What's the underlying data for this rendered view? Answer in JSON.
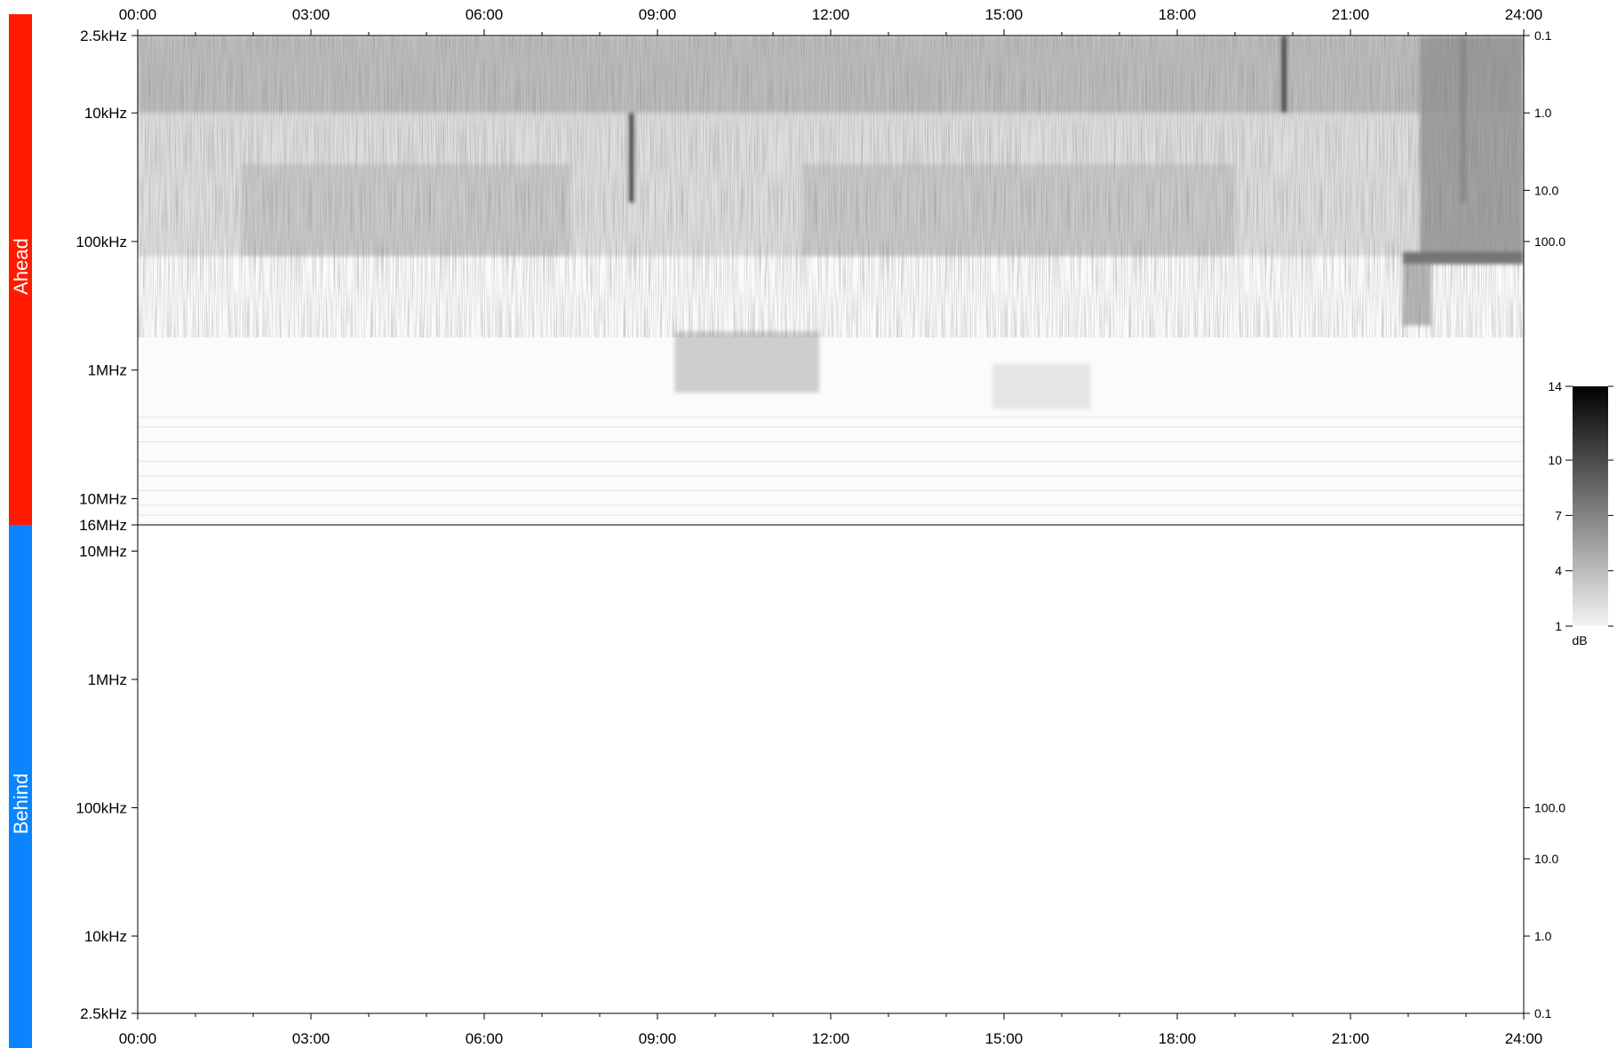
{
  "chart_data": {
    "type": "heatmap",
    "title": "",
    "time_axis": {
      "ticks": [
        "00:00",
        "03:00",
        "06:00",
        "09:00",
        "12:00",
        "15:00",
        "18:00",
        "21:00",
        "24:00"
      ],
      "range_hours": [
        0,
        24
      ],
      "minor_tick_hours": 1
    },
    "panels": [
      {
        "name": "Ahead",
        "color": "#ff1a00",
        "frequency_scale": "log",
        "frequency_range_hz": [
          2500,
          16000000
        ],
        "frequency_direction": "increasing-downward",
        "frequency_ticks": [
          {
            "hz": 2500,
            "label": "2.5kHz"
          },
          {
            "hz": 10000,
            "label": "10kHz"
          },
          {
            "hz": 100000,
            "label": "100kHz"
          },
          {
            "hz": 1000000,
            "label": "1MHz"
          },
          {
            "hz": 10000000,
            "label": "10MHz"
          },
          {
            "hz": 16000000,
            "label": "16MHz"
          }
        ],
        "right_ticks": [
          {
            "hz": 2500,
            "label": "0.1"
          },
          {
            "hz": 10000,
            "label": "1.0"
          },
          {
            "hz": 40000,
            "label": "10.0"
          },
          {
            "hz": 100000,
            "label": "100.0"
          }
        ],
        "features": [
          {
            "desc": "broadband band",
            "t_start_h": 0,
            "t_end_h": 24,
            "f_low_hz": 2500,
            "f_high_hz": 10000,
            "level_db": 4.5
          },
          {
            "desc": "broadband band",
            "t_start_h": 0,
            "t_end_h": 24,
            "f_low_hz": 10000,
            "f_high_hz": 130000,
            "level_db": 2.5
          },
          {
            "desc": "enhanced emission",
            "t_start_h": 1.8,
            "t_end_h": 7.5,
            "f_low_hz": 25000,
            "f_high_hz": 130000,
            "level_db": 3.5
          },
          {
            "desc": "enhanced emission",
            "t_start_h": 11.5,
            "t_end_h": 19,
            "f_low_hz": 25000,
            "f_high_hz": 130000,
            "level_db": 3.5
          },
          {
            "desc": "type III burst",
            "t_start_h": 8.5,
            "t_end_h": 8.6,
            "f_low_hz": 10000,
            "f_high_hz": 50000,
            "level_db": 13
          },
          {
            "desc": "type III burst",
            "t_start_h": 19.8,
            "t_end_h": 19.9,
            "f_low_hz": 2500,
            "f_high_hz": 10000,
            "level_db": 12
          },
          {
            "desc": "type III burst",
            "t_start_h": 22.9,
            "t_end_h": 23.0,
            "f_low_hz": 2500,
            "f_high_hz": 50000,
            "level_db": 12
          },
          {
            "desc": "intense emission",
            "t_start_h": 22.2,
            "t_end_h": 24,
            "f_low_hz": 2500,
            "f_high_hz": 120000,
            "level_db": 6
          },
          {
            "desc": "emission lane",
            "t_start_h": 21.9,
            "t_end_h": 24,
            "f_low_hz": 120000,
            "f_high_hz": 150000,
            "level_db": 9
          },
          {
            "desc": "emission tail",
            "t_start_h": 21.9,
            "t_end_h": 22.4,
            "f_low_hz": 150000,
            "f_high_hz": 450000,
            "level_db": 5
          },
          {
            "desc": "faint drift",
            "t_start_h": 9.3,
            "t_end_h": 11.8,
            "f_low_hz": 500000,
            "f_high_hz": 1500000,
            "level_db": 3.5
          },
          {
            "desc": "faint drift",
            "t_start_h": 14.8,
            "t_end_h": 16.5,
            "f_low_hz": 900000,
            "f_high_hz": 2000000,
            "level_db": 2
          }
        ]
      },
      {
        "name": "Behind",
        "color": "#0a84ff",
        "frequency_scale": "log",
        "frequency_range_hz": [
          2500,
          16000000
        ],
        "frequency_direction": "increasing-upward",
        "frequency_ticks": [
          {
            "hz": 10000000,
            "label": "10MHz"
          },
          {
            "hz": 1000000,
            "label": "1MHz"
          },
          {
            "hz": 100000,
            "label": "100kHz"
          },
          {
            "hz": 10000,
            "label": "10kHz"
          },
          {
            "hz": 2500,
            "label": "2.5kHz"
          }
        ],
        "right_ticks": [
          {
            "hz": 100000,
            "label": "100.0"
          },
          {
            "hz": 40000,
            "label": "10.0"
          },
          {
            "hz": 10000,
            "label": "1.0"
          },
          {
            "hz": 2500,
            "label": "0.1"
          }
        ],
        "features": []
      }
    ],
    "colorbar": {
      "label": "dB",
      "range": [
        1,
        14
      ],
      "ticks": [
        "14",
        "10",
        "7",
        "4",
        "1"
      ],
      "color_low": "#f4f4f4",
      "color_high": "#000000"
    }
  }
}
